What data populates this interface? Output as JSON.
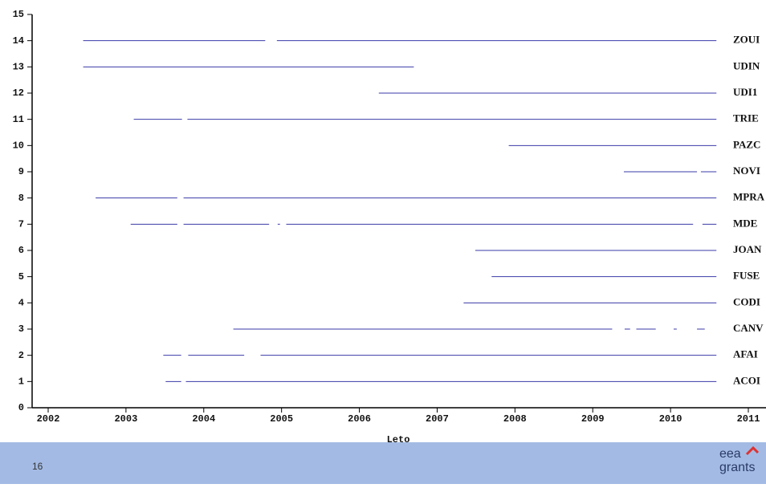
{
  "chart_data": {
    "type": "timeline",
    "xlabel": "Leto",
    "color": "#3a3aa8",
    "xlim": [
      2002,
      2011
    ],
    "xticks": [
      2002,
      2003,
      2004,
      2005,
      2006,
      2007,
      2008,
      2009,
      2010,
      2011
    ],
    "ylim": [
      0,
      15
    ],
    "yticks": [
      0,
      1,
      2,
      3,
      4,
      5,
      6,
      7,
      8,
      9,
      10,
      11,
      12,
      13,
      14,
      15
    ],
    "series": [
      {
        "name": "ZOUI",
        "y": 14,
        "segments": [
          [
            2002.45,
            2004.79
          ],
          [
            2004.94,
            2010.59
          ]
        ]
      },
      {
        "name": "UDIN",
        "y": 13,
        "segments": [
          [
            2002.45,
            2006.7
          ]
        ]
      },
      {
        "name": "UDI1",
        "y": 12,
        "segments": [
          [
            2006.25,
            2010.59
          ]
        ]
      },
      {
        "name": "TRIE",
        "y": 11,
        "segments": [
          [
            2003.1,
            2003.72
          ],
          [
            2003.79,
            2010.59
          ]
        ]
      },
      {
        "name": "PAZC",
        "y": 10,
        "segments": [
          [
            2007.92,
            2010.59
          ]
        ]
      },
      {
        "name": "NOVI",
        "y": 9,
        "segments": [
          [
            2009.4,
            2010.34
          ],
          [
            2010.39,
            2010.59
          ]
        ]
      },
      {
        "name": "MPRA",
        "y": 8,
        "segments": [
          [
            2002.61,
            2003.66
          ],
          [
            2003.74,
            2010.59
          ]
        ]
      },
      {
        "name": "MDE",
        "y": 7,
        "segments": [
          [
            2003.06,
            2003.66
          ],
          [
            2003.74,
            2004.84
          ],
          [
            2004.95,
            2004.98
          ],
          [
            2005.06,
            2010.29
          ],
          [
            2010.41,
            2010.59
          ]
        ]
      },
      {
        "name": "JOAN",
        "y": 6,
        "segments": [
          [
            2007.49,
            2010.59
          ]
        ]
      },
      {
        "name": "FUSE",
        "y": 5,
        "segments": [
          [
            2007.7,
            2010.59
          ]
        ]
      },
      {
        "name": "CODI",
        "y": 4,
        "segments": [
          [
            2007.34,
            2010.59
          ]
        ]
      },
      {
        "name": "CANV",
        "y": 3,
        "segments": [
          [
            2004.38,
            2009.25
          ],
          [
            2009.41,
            2009.48
          ],
          [
            2009.56,
            2009.81
          ],
          [
            2010.04,
            2010.08
          ],
          [
            2010.34,
            2010.44
          ]
        ]
      },
      {
        "name": "AFAI",
        "y": 2,
        "segments": [
          [
            2003.48,
            2003.71
          ],
          [
            2003.8,
            2004.52
          ],
          [
            2004.73,
            2010.59
          ]
        ]
      },
      {
        "name": "ACOI",
        "y": 1,
        "segments": [
          [
            2003.51,
            2003.71
          ],
          [
            2003.77,
            2010.59
          ]
        ]
      }
    ]
  },
  "footer": {
    "page_number": "16",
    "logo_top": "eea",
    "logo_bottom": "grants"
  }
}
